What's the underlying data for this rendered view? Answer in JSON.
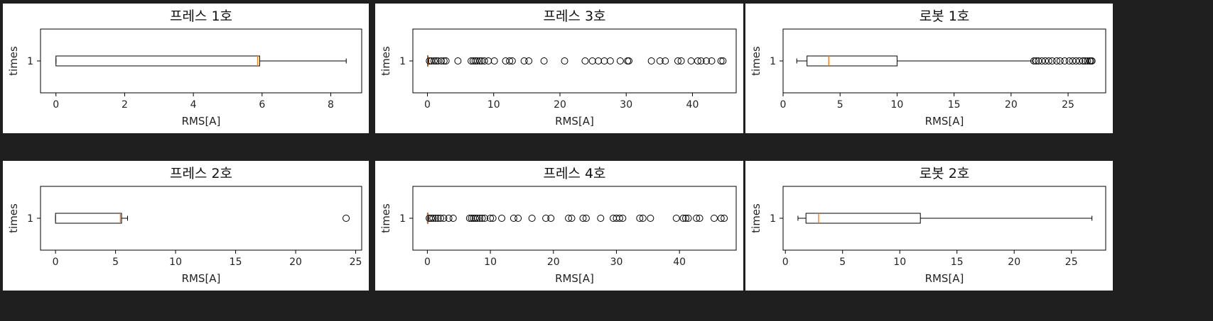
{
  "chart_data": [
    {
      "type": "boxplot",
      "title": "프레스 1호",
      "xlabel": "RMS[A]",
      "ylabel": "times",
      "categories": [
        "1"
      ],
      "xlim": [
        -0.45,
        8.9
      ],
      "xticks": [
        0,
        2,
        4,
        6,
        8
      ],
      "box": {
        "whisker_low": 0.0,
        "q1": 0.0,
        "median": 5.87,
        "q3": 5.93,
        "whisker_high": 8.45,
        "outliers": []
      }
    },
    {
      "type": "boxplot",
      "title": "프레스 3호",
      "xlabel": "RMS[A]",
      "ylabel": "times",
      "categories": [
        "1"
      ],
      "xlim": [
        -2.2,
        46.6
      ],
      "xticks": [
        0,
        10,
        20,
        30,
        40
      ],
      "box": {
        "whisker_low": 0.0,
        "q1": 0.0,
        "median": 0.05,
        "q3": 0.1,
        "whisker_high": 0.2,
        "outliers": [
          0.3,
          0.6,
          1.0,
          1.3,
          1.6,
          2.1,
          2.5,
          2.8,
          4.6,
          6.6,
          6.9,
          7.2,
          7.5,
          7.9,
          8.2,
          8.6,
          9.2,
          10.1,
          11.8,
          12.4,
          12.8,
          14.6,
          15.3,
          17.6,
          20.7,
          23.8,
          24.9,
          25.8,
          26.7,
          27.6,
          29.1,
          30.2,
          30.4,
          33.8,
          35.1,
          35.9,
          37.8,
          38.3,
          39.8,
          40.8,
          41.3,
          42.1,
          42.9,
          44.3,
          44.6
        ]
      }
    },
    {
      "type": "boxplot",
      "title": "로봇 1호",
      "xlabel": "RMS[A]",
      "ylabel": "times",
      "categories": [
        "1"
      ],
      "xlim": [
        0,
        28.3
      ],
      "xticks": [
        0,
        5,
        10,
        15,
        20,
        25
      ],
      "box": {
        "whisker_low": 1.2,
        "q1": 2.1,
        "median": 4.0,
        "q3": 10.0,
        "whisker_high": 21.9,
        "outliers": [
          22.0,
          22.2,
          22.4,
          22.7,
          23.0,
          23.3,
          23.6,
          24.0,
          24.3,
          24.7,
          25.1,
          25.4,
          25.7,
          26.0,
          26.3,
          26.5,
          26.7,
          26.9,
          27.0,
          27.1
        ]
      }
    },
    {
      "type": "boxplot",
      "title": "프레스 2호",
      "xlabel": "RMS[A]",
      "ylabel": "times",
      "categories": [
        "1"
      ],
      "xlim": [
        -1.25,
        25.5
      ],
      "xticks": [
        0,
        5,
        10,
        15,
        20,
        25
      ],
      "box": {
        "whisker_low": 0.0,
        "q1": 0.0,
        "median": 5.4,
        "q3": 5.5,
        "whisker_high": 6.0,
        "outliers": [
          24.2
        ]
      }
    },
    {
      "type": "boxplot",
      "title": "프레스 4호",
      "xlabel": "RMS[A]",
      "ylabel": "times",
      "categories": [
        "1"
      ],
      "xlim": [
        -2.3,
        49.0
      ],
      "xticks": [
        0,
        10,
        20,
        30,
        40
      ],
      "box": {
        "whisker_low": 0.0,
        "q1": 0.0,
        "median": 0.05,
        "q3": 0.1,
        "whisker_high": 0.2,
        "outliers": [
          0.3,
          0.6,
          0.9,
          1.3,
          1.7,
          2.1,
          2.6,
          3.4,
          4.1,
          6.7,
          7.0,
          7.3,
          7.6,
          7.9,
          8.3,
          8.7,
          9.1,
          10.0,
          10.4,
          11.8,
          13.7,
          14.4,
          16.6,
          18.8,
          19.6,
          22.4,
          22.9,
          24.7,
          25.2,
          27.5,
          29.5,
          30.0,
          30.5,
          31.0,
          33.7,
          34.2,
          35.4,
          39.5,
          40.6,
          41.0,
          41.4,
          42.7,
          43.2,
          45.5,
          46.6,
          47.1
        ]
      }
    },
    {
      "type": "boxplot",
      "title": "로봇 2호",
      "xlabel": "RMS[A]",
      "ylabel": "times",
      "categories": [
        "1"
      ],
      "xlim": [
        -0.2,
        28.0
      ],
      "xticks": [
        0,
        5,
        10,
        15,
        20,
        25
      ],
      "box": {
        "whisker_low": 1.1,
        "q1": 1.8,
        "median": 2.9,
        "q3": 11.8,
        "whisker_high": 26.8,
        "outliers": []
      }
    }
  ]
}
